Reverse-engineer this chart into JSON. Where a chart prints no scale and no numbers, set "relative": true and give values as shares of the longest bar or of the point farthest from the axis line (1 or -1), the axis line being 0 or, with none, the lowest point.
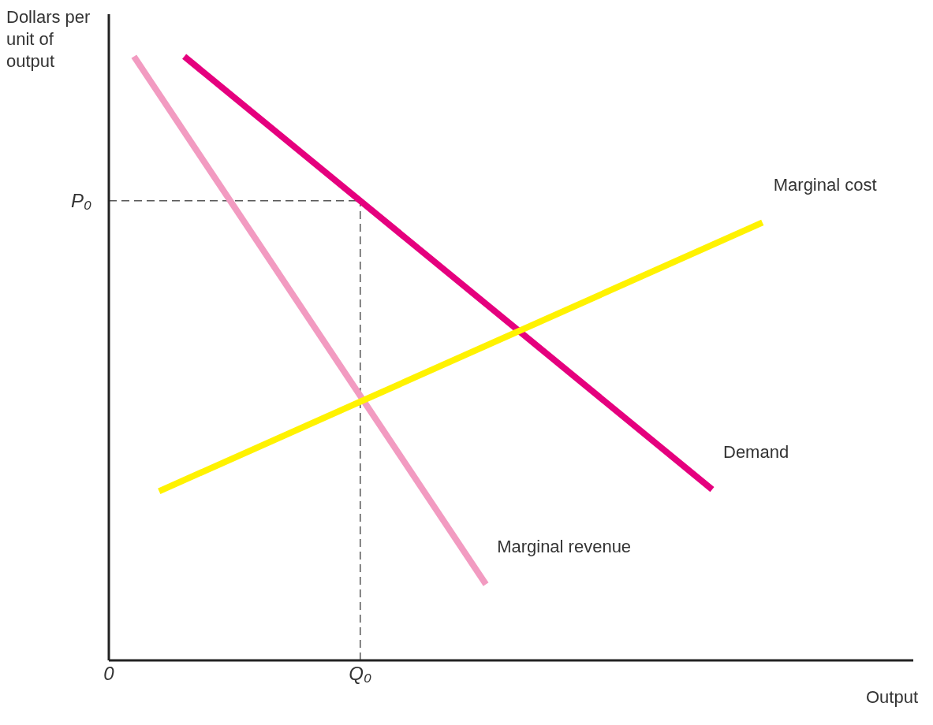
{
  "chart_data": {
    "type": "line",
    "relative": true,
    "ylabel": "Dollars per unit of output",
    "xlabel": "Output",
    "legend": false,
    "grid": false,
    "marker": "none",
    "categories": [
      "0",
      null,
      null,
      null,
      null,
      null,
      null,
      null,
      null,
      null,
      "Q₀",
      null,
      null,
      null,
      null,
      null,
      null,
      null,
      null,
      null,
      null,
      null,
      null,
      null,
      null,
      null,
      null,
      null,
      null,
      null,
      null,
      null,
      null
    ],
    "ref_lines": [
      {
        "axis": "y",
        "value": 0.761,
        "label": "P₀",
        "color": "#555555",
        "line_style": "dashed"
      },
      {
        "axis": "x",
        "value": "Q₀",
        "color": "#555555",
        "line_style": "dashed"
      }
    ],
    "series": [
      {
        "name": "Marginal revenue",
        "color": "#f29bc1",
        "values": [
          null,
          1,
          null,
          null,
          null,
          null,
          null,
          null,
          null,
          null,
          null,
          null,
          null,
          null,
          null,
          0.126,
          null,
          null,
          null,
          null,
          null,
          null,
          null,
          null,
          null,
          null,
          null,
          null,
          null,
          null,
          null,
          null,
          null
        ]
      },
      {
        "name": "Demand",
        "color": "#e5007e",
        "values": [
          null,
          null,
          null,
          1,
          null,
          null,
          null,
          null,
          null,
          null,
          null,
          null,
          null,
          null,
          null,
          null,
          null,
          null,
          null,
          null,
          null,
          null,
          null,
          null,
          0.283,
          null,
          null,
          null,
          null,
          null,
          null,
          null,
          null
        ]
      },
      {
        "name": "Marginal cost",
        "color": "#fff200",
        "values": [
          null,
          null,
          0.28,
          null,
          null,
          null,
          null,
          null,
          null,
          null,
          null,
          null,
          null,
          null,
          null,
          null,
          null,
          null,
          null,
          null,
          null,
          null,
          null,
          null,
          null,
          null,
          0.725,
          null,
          null,
          null,
          null,
          null,
          null
        ]
      }
    ]
  }
}
